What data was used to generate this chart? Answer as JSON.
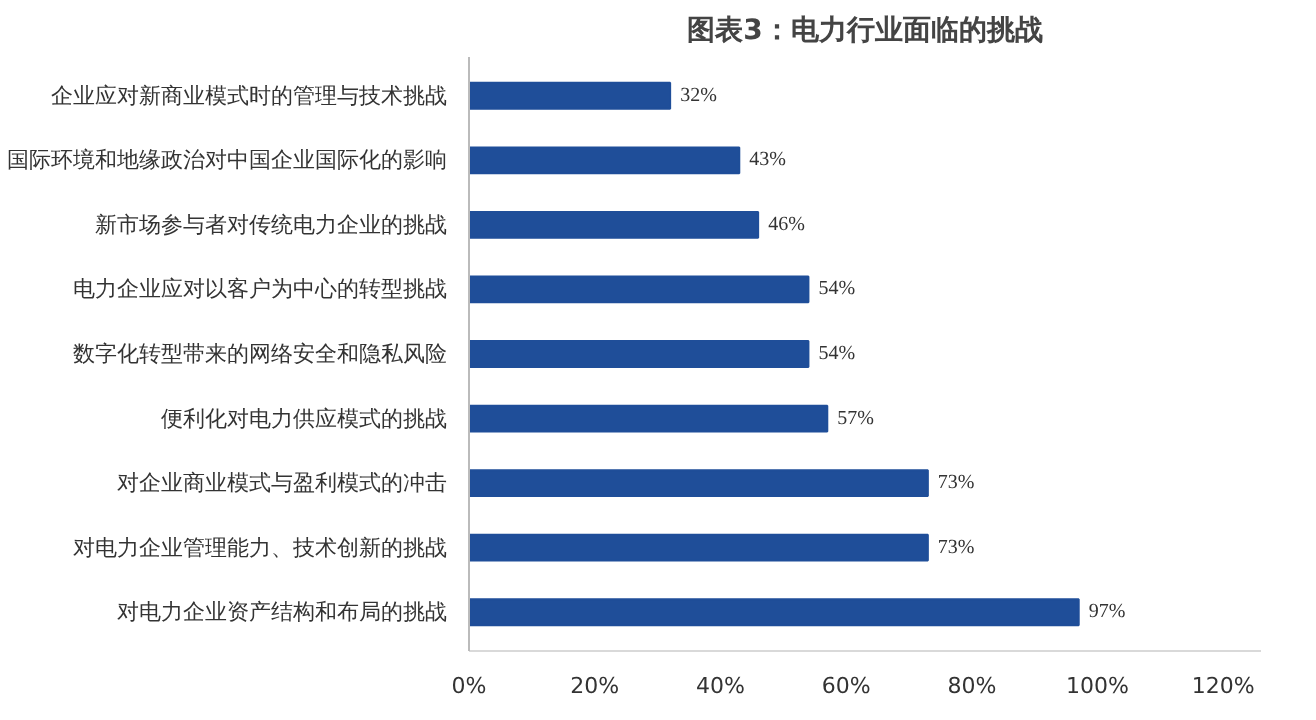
{
  "chart_data": {
    "type": "bar",
    "orientation": "horizontal",
    "title": "图表3：电力行业面临的挑战",
    "categories": [
      "企业应对新商业模式时的管理与技术挑战",
      "国际环境和地缘政治对中国企业国际化的影响",
      "新市场参与者对传统电力企业的挑战",
      "电力企业应对以客户为中心的转型挑战",
      "数字化转型带来的网络安全和隐私风险",
      "便利化对电力供应模式的挑战",
      "对企业商业模式与盈利模式的冲击",
      "对电力企业管理能力、技术创新的挑战",
      "对电力企业资产结构和布局的挑战"
    ],
    "values": [
      32,
      43,
      46,
      54,
      54,
      57,
      73,
      73,
      97
    ],
    "value_labels": [
      "32%",
      "43%",
      "46%",
      "54%",
      "54%",
      "57%",
      "73%",
      "73%",
      "97%"
    ],
    "color": "#1f4e99",
    "xlim": [
      0,
      126
    ],
    "xticks": [
      {
        "value": 0,
        "label": "0%"
      },
      {
        "value": 20,
        "label": "20%"
      },
      {
        "value": 40,
        "label": "40%"
      },
      {
        "value": 60,
        "label": "60%"
      },
      {
        "value": 80,
        "label": "80%"
      },
      {
        "value": 100,
        "label": "100%"
      },
      {
        "value": 120,
        "label": "120%"
      }
    ],
    "grid": false
  }
}
